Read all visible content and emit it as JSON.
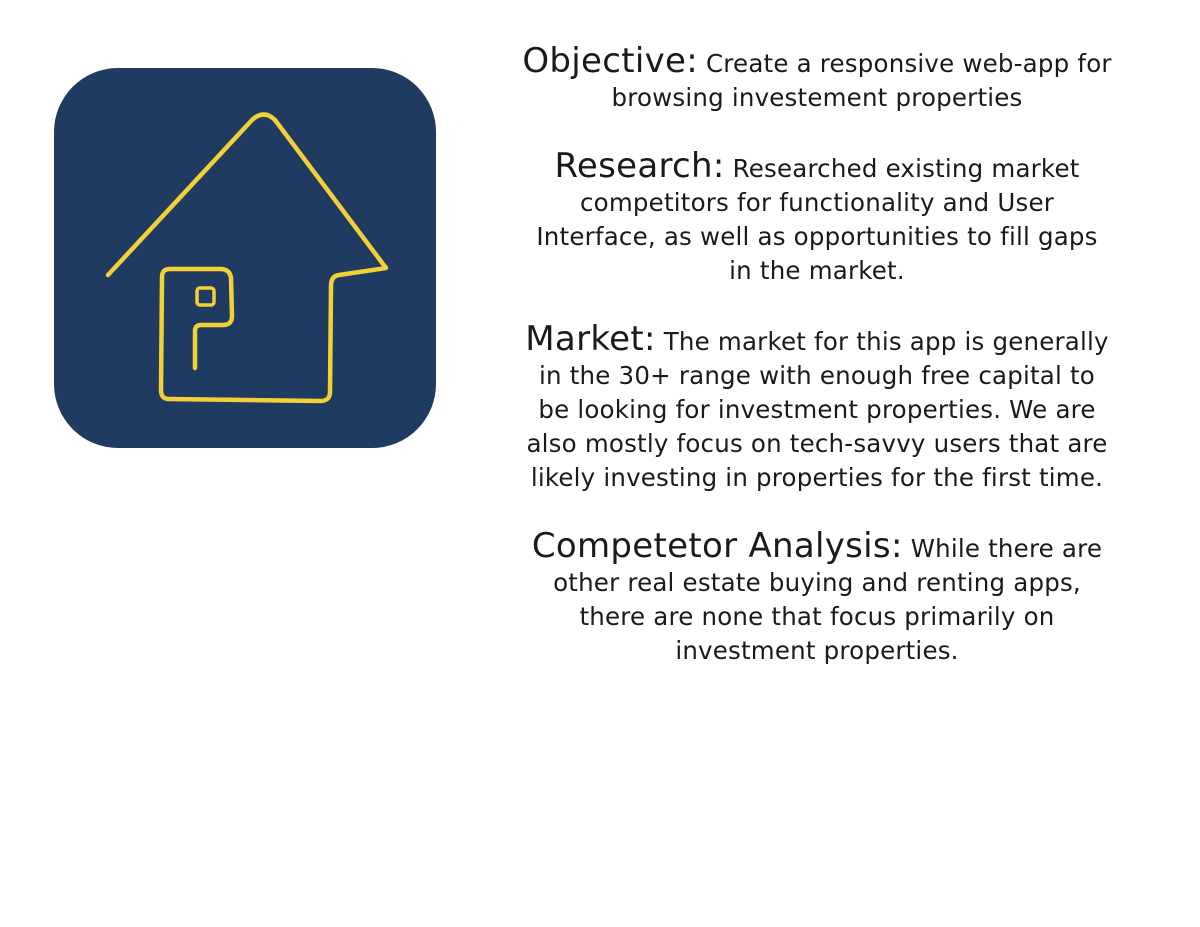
{
  "logo": {
    "icon": "house-p-logo",
    "background_color": "#203b62",
    "stroke_color": "#f1d135"
  },
  "sections": [
    {
      "heading": "Objective:",
      "body": "Create a responsive web-app for browsing investement properties"
    },
    {
      "heading": "Research:",
      "body": "Researched existing market competitors for functionality and User Interface, as well as opportunities to fill gaps in the market."
    },
    {
      "heading": "Market:",
      "body": "The market for this app is generally in the 30+ range with enough free capital to be looking for investment properties. We are also mostly focus on tech-savvy users that are likely investing in properties for the first time."
    },
    {
      "heading": "Competetor Analysis:",
      "body": "While there are other real estate buying and renting apps, there are none that focus primarily on investment properties."
    }
  ]
}
